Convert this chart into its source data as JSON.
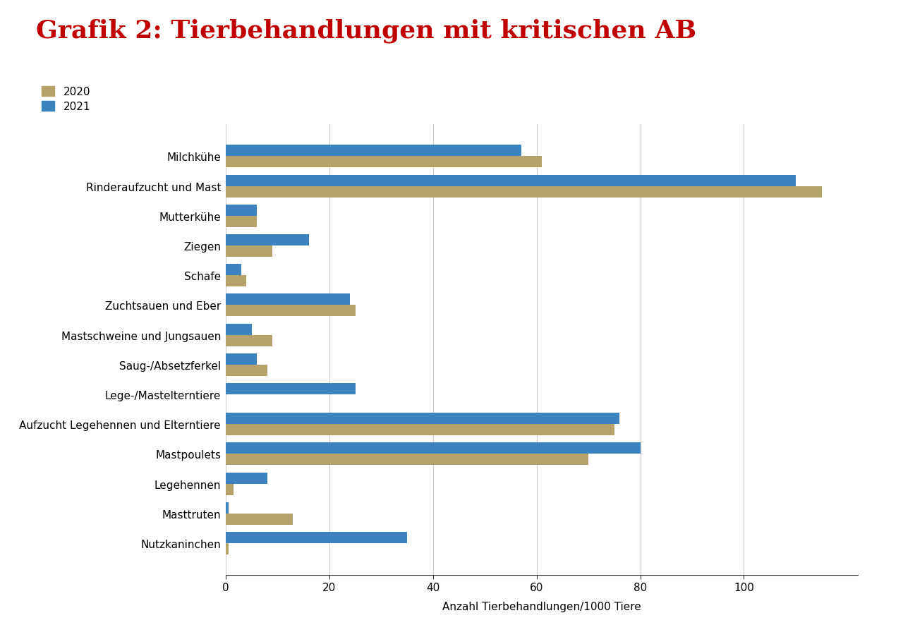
{
  "title": "Grafik 2: Tierbehandlungen mit kritischen AB",
  "categories": [
    "Milchkühe",
    "Rinderaufzucht und Mast",
    "Mutterkühe",
    "Ziegen",
    "Schafe",
    "Zuchtsauen und Eber",
    "Mastschweine und Jungsauen",
    "Saug-/Absetzferkel",
    "Lege-/Mastelterntiere",
    "Aufzucht Legehennen und Elterntiere",
    "Mastpoulets",
    "Legehennen",
    "Masttruten",
    "Nutzkaninchen"
  ],
  "values_2020": [
    61,
    115,
    6,
    9,
    4,
    25,
    9,
    8,
    0,
    75,
    70,
    1.5,
    13,
    0.5
  ],
  "values_2021": [
    57,
    110,
    6,
    16,
    3,
    24,
    5,
    6,
    25,
    76,
    80,
    8,
    0.5,
    35
  ],
  "color_2020": "#b5a16a",
  "color_2021": "#3b82be",
  "xlabel": "Anzahl Tierbehandlungen/1000 Tiere",
  "legend_2020": "2020",
  "legend_2021": "2021",
  "xlim": [
    0,
    122
  ],
  "xticks": [
    0,
    20,
    40,
    60,
    80,
    100
  ],
  "title_color": "#c00000",
  "title_fontsize": 26,
  "background_color": "#ffffff"
}
